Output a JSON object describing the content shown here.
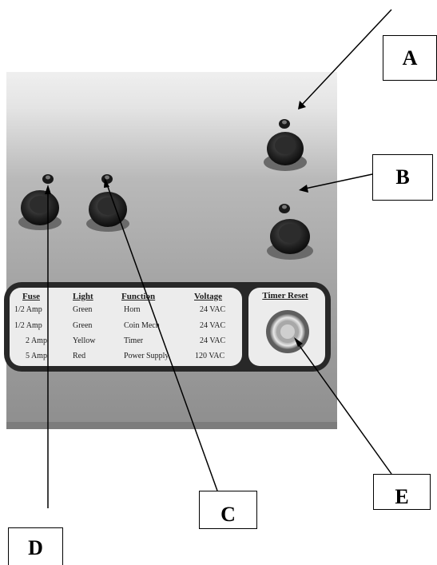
{
  "labels": {
    "a": "A",
    "b": "B",
    "c": "C",
    "d": "D",
    "e": "E"
  },
  "panel": {
    "headers": {
      "fuse": "Fuse",
      "light": "Light",
      "function": "Function",
      "voltage": "Voltage"
    },
    "rows": [
      {
        "fuse": "1/2 Amp",
        "light": "Green",
        "function": "Horn",
        "voltage": "24 VAC"
      },
      {
        "fuse": "1/2 Amp",
        "light": "Green",
        "function": "Coin Mech",
        "voltage": "24 VAC"
      },
      {
        "fuse": "2 Amp",
        "light": "Yellow",
        "function": "Timer",
        "voltage": "24 VAC"
      },
      {
        "fuse": "5 Amp",
        "light": "Red",
        "function": "Power Supply",
        "voltage": "120 VAC"
      }
    ],
    "timer_reset": "Timer Reset"
  }
}
